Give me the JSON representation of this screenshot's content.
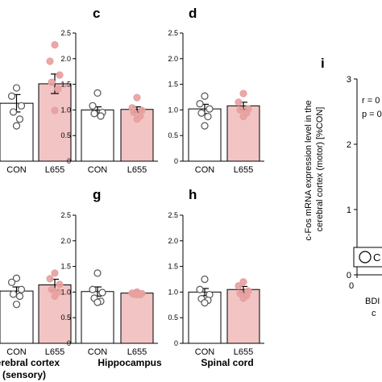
{
  "panels": [
    {
      "id": "b",
      "letter": "",
      "region_label": "",
      "ylim": [
        0,
        2.5
      ],
      "categories": [
        "CON",
        "L655"
      ],
      "values": [
        1.13,
        1.51
      ],
      "errors": [
        0.17,
        0.19
      ],
      "points": [
        [
          1.43,
          1.27,
          1.08,
          0.96,
          0.82,
          0.69
        ],
        [
          2.27,
          1.95,
          1.68,
          1.54,
          1.41,
          0.99
        ]
      ]
    },
    {
      "id": "c",
      "letter": "c",
      "region_label": "",
      "ylim": [
        0,
        2.5
      ],
      "categories": [
        "CON",
        "L655"
      ],
      "values": [
        1.0,
        1.01
      ],
      "errors": [
        0.06,
        0.05
      ],
      "points": [
        [
          1.33,
          1.08,
          0.95,
          0.93,
          0.88
        ],
        [
          1.24,
          1.04,
          0.99,
          0.95,
          0.88,
          0.82
        ]
      ]
    },
    {
      "id": "d",
      "letter": "d",
      "region_label": "",
      "ylim": [
        0,
        2.5
      ],
      "categories": [
        "CON",
        "L655"
      ],
      "values": [
        1.02,
        1.08
      ],
      "errors": [
        0.09,
        0.07
      ],
      "points": [
        [
          1.27,
          1.12,
          1.02,
          0.94,
          0.87,
          0.69
        ],
        [
          1.32,
          1.15,
          1.02,
          1.0,
          0.94,
          0.87
        ]
      ]
    },
    {
      "id": "f",
      "letter": "",
      "region_label": "Cerebral cortex\n(sensory)",
      "ylim": [
        0,
        2.5
      ],
      "categories": [
        "CON",
        "L655"
      ],
      "values": [
        1.02,
        1.14
      ],
      "errors": [
        0.08,
        0.11
      ],
      "points": [
        [
          1.27,
          1.19,
          1.05,
          0.96,
          0.92,
          0.76
        ],
        [
          1.37,
          1.26,
          1.15,
          1.05,
          1.0,
          0.92
        ]
      ]
    },
    {
      "id": "g",
      "letter": "g",
      "region_label": "Hippocampus",
      "ylim": [
        0,
        2.5
      ],
      "categories": [
        "CON",
        "L655"
      ],
      "values": [
        1.01,
        0.98
      ],
      "errors": [
        0.09,
        0.04
      ],
      "points": [
        [
          1.37,
          1.05,
          0.99,
          0.88,
          0.82,
          0.8
        ],
        [
          1.0,
          0.98,
          0.97,
          0.96,
          0.95,
          0.95
        ]
      ]
    },
    {
      "id": "h",
      "letter": "h",
      "region_label": "Spinal cord",
      "ylim": [
        0,
        2.5
      ],
      "categories": [
        "CON",
        "L655"
      ],
      "values": [
        1.0,
        1.05
      ],
      "errors": [
        0.07,
        0.06
      ],
      "points": [
        [
          1.25,
          1.05,
          0.95,
          0.87,
          0.84,
          0.79
        ],
        [
          1.2,
          1.12,
          1.02,
          0.97,
          0.93,
          0.88
        ]
      ]
    }
  ],
  "axis": {
    "ticks": [
      0,
      0.5,
      1.0,
      1.5,
      2.0,
      2.5
    ],
    "tick_labels": [
      "0",
      "0.5",
      "1.0",
      "1.5",
      "2.0",
      "2.5"
    ]
  },
  "colors": {
    "con_fill": "#ffffff",
    "l655_fill": "#f2c4c4",
    "l655_point": "#e8a0a0",
    "stroke": "#000000",
    "con_point_stroke": "#555555"
  },
  "panel_i": {
    "letter": "i",
    "ylabel": "c-Fos mRNA expression level in the\ncerebral cortex (motor) [%CON]",
    "ticks": [
      "3",
      "2",
      "1",
      "0"
    ],
    "x_tick_label": "0",
    "stat_r": "r = 0",
    "stat_p": "p = 0",
    "legend_label": "C",
    "x_label_line1": "BDI",
    "x_label_line2": "c"
  }
}
